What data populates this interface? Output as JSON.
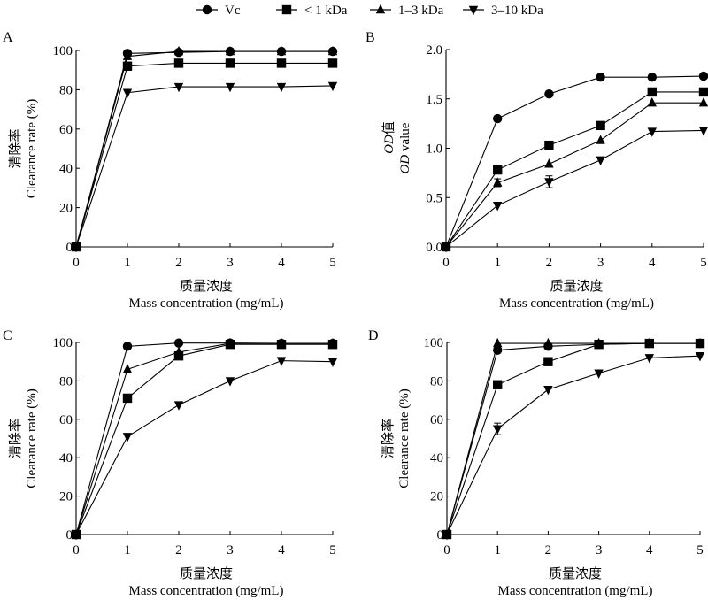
{
  "legend": [
    {
      "name": "Vc",
      "marker": "circle"
    },
    {
      "name": "< 1 kDa",
      "marker": "square"
    },
    {
      "name": "1–3 kDa",
      "marker": "triangle-up"
    },
    {
      "name": "3–10 kDa",
      "marker": "triangle-down"
    }
  ],
  "chart_data": [
    {
      "type": "line",
      "panel": "A",
      "xlabel_cn": "质量浓度",
      "xlabel": "Mass concentration (mg/mL)",
      "ylabel_cn": "清除率",
      "ylabel": "Clearance rate (%)",
      "ylabel_italic_prefix": "",
      "x": [
        0,
        1,
        2,
        3,
        4,
        5
      ],
      "xlim": [
        0,
        5
      ],
      "ylim": [
        0,
        100
      ],
      "xticks": [
        "0",
        "1",
        "2",
        "3",
        "4",
        "5"
      ],
      "yticks": [
        0,
        20,
        40,
        60,
        80,
        100
      ],
      "ytick_labels": [
        "0",
        "20",
        "40",
        "60",
        "80",
        "100"
      ],
      "series": [
        {
          "name": "Vc",
          "marker": "circle",
          "values": [
            0,
            98.5,
            99,
            99.5,
            99.5,
            99.5
          ]
        },
        {
          "name": "< 1 kDa",
          "marker": "square",
          "values": [
            0,
            92,
            93.5,
            93.5,
            93.5,
            93.5
          ]
        },
        {
          "name": "1–3 kDa",
          "marker": "triangle-up",
          "values": [
            0,
            97,
            99.5,
            99.5,
            99.5,
            99.5
          ]
        },
        {
          "name": "3–10 kDa",
          "marker": "triangle-down",
          "values": [
            0,
            78.5,
            81.5,
            81.5,
            81.5,
            82
          ]
        }
      ],
      "error_bars": []
    },
    {
      "type": "line",
      "panel": "B",
      "xlabel_cn": "质量浓度",
      "xlabel": "Mass concentration (mg/mL)",
      "ylabel_cn": "值",
      "ylabel_cn_prefix": "OD",
      "ylabel": " value",
      "ylabel_italic_prefix": "OD",
      "x": [
        0,
        1,
        2,
        3,
        4,
        5
      ],
      "xlim": [
        0,
        5
      ],
      "ylim": [
        0,
        2.0
      ],
      "xticks": [
        "0",
        "1",
        "2",
        "3",
        "4",
        "5"
      ],
      "yticks": [
        0,
        0.5,
        1.0,
        1.5,
        2.0
      ],
      "ytick_labels": [
        "0.0",
        "0.5",
        "1.0",
        "1.5",
        "2.0"
      ],
      "series": [
        {
          "name": "Vc",
          "marker": "circle",
          "values": [
            0,
            1.3,
            1.55,
            1.72,
            1.72,
            1.73
          ]
        },
        {
          "name": "< 1 kDa",
          "marker": "square",
          "values": [
            0,
            0.78,
            1.03,
            1.23,
            1.57,
            1.57
          ]
        },
        {
          "name": "1–3 kDa",
          "marker": "triangle-up",
          "values": [
            0,
            0.65,
            0.84,
            1.08,
            1.46,
            1.46
          ]
        },
        {
          "name": "3–10 kDa",
          "marker": "triangle-down",
          "values": [
            0,
            0.42,
            0.66,
            0.88,
            1.17,
            1.18
          ]
        }
      ],
      "error_bars": [
        {
          "series": "1–3 kDa",
          "x": 1,
          "err": 0.04
        },
        {
          "series": "3–10 kDa",
          "x": 2,
          "err": 0.06
        }
      ]
    },
    {
      "type": "line",
      "panel": "C",
      "xlabel_cn": "质量浓度",
      "xlabel": "Mass concentration (mg/mL)",
      "ylabel_cn": "清除率",
      "ylabel": "Clearance rate (%)",
      "ylabel_italic_prefix": "",
      "x": [
        0,
        1,
        2,
        3,
        4,
        5
      ],
      "xlim": [
        0,
        5
      ],
      "ylim": [
        0,
        100
      ],
      "xticks": [
        "0",
        "1",
        "2",
        "3",
        "4",
        "5"
      ],
      "yticks": [
        0,
        20,
        40,
        60,
        80,
        100
      ],
      "ytick_labels": [
        "0",
        "20",
        "40",
        "60",
        "80",
        "100"
      ],
      "series": [
        {
          "name": "Vc",
          "marker": "circle",
          "values": [
            0,
            98,
            99.7,
            99.7,
            99.5,
            99.5
          ]
        },
        {
          "name": "< 1 kDa",
          "marker": "square",
          "values": [
            0,
            71,
            93,
            99,
            99,
            99
          ]
        },
        {
          "name": "1–3 kDa",
          "marker": "triangle-up",
          "values": [
            0,
            86,
            95,
            99.5,
            99.5,
            99.5
          ]
        },
        {
          "name": "3–10 kDa",
          "marker": "triangle-down",
          "values": [
            0,
            51,
            67.5,
            80,
            90.5,
            90
          ]
        }
      ],
      "error_bars": []
    },
    {
      "type": "line",
      "panel": "D",
      "xlabel_cn": "质量浓度",
      "xlabel": "Mass concentration (mg/mL)",
      "ylabel_cn": "清除率",
      "ylabel": "Clearance rate (%)",
      "ylabel_italic_prefix": "",
      "x": [
        0,
        1,
        2,
        3,
        4,
        5
      ],
      "xlim": [
        0,
        5
      ],
      "ylim": [
        0,
        100
      ],
      "xticks": [
        "0",
        "1",
        "2",
        "3",
        "4",
        "5"
      ],
      "yticks": [
        0,
        20,
        40,
        60,
        80,
        100
      ],
      "ytick_labels": [
        "0",
        "20",
        "40",
        "60",
        "80",
        "100"
      ],
      "series": [
        {
          "name": "Vc",
          "marker": "circle",
          "values": [
            0,
            96,
            98,
            99,
            99.5,
            99.5
          ]
        },
        {
          "name": "< 1 kDa",
          "marker": "square",
          "values": [
            0,
            78,
            90,
            99,
            99.5,
            99.5
          ]
        },
        {
          "name": "1–3 kDa",
          "marker": "triangle-up",
          "values": [
            0,
            99.5,
            99.5,
            99.5,
            99.5,
            99.5
          ]
        },
        {
          "name": "3–10 kDa",
          "marker": "triangle-down",
          "values": [
            0,
            55,
            75.5,
            84,
            92,
            93
          ]
        }
      ],
      "error_bars": [
        {
          "series": "3–10 kDa",
          "x": 1,
          "err": 3
        }
      ]
    }
  ]
}
